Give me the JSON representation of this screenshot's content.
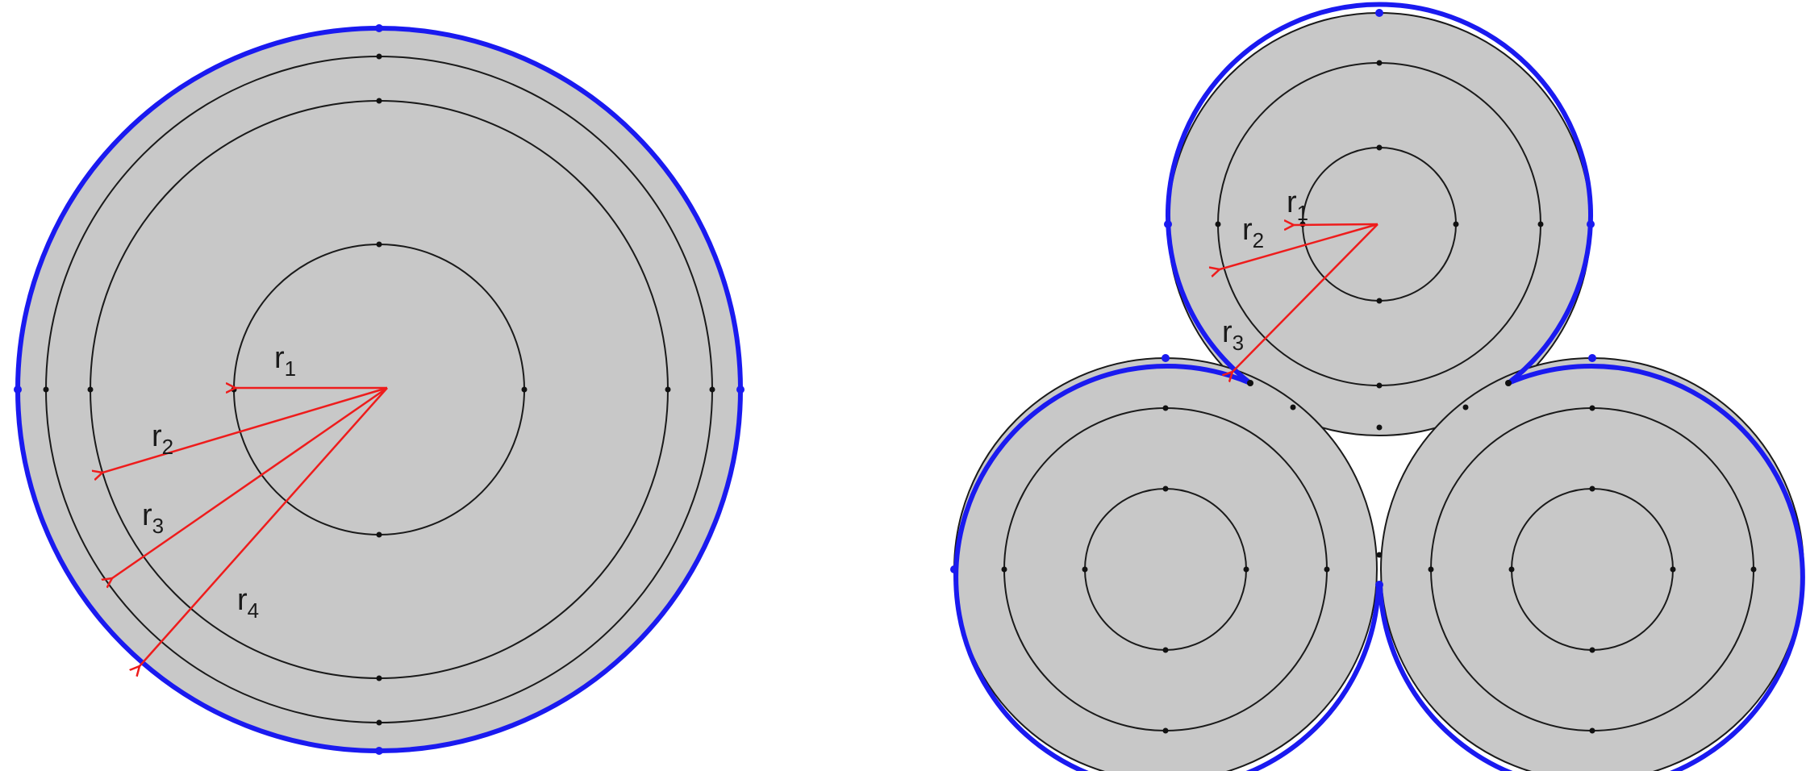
{
  "colors": {
    "fill": "#c8c8c8",
    "outline": "#1a1a1aff",
    "boundary": "#1a1af0",
    "arrow": "#ee1c1c",
    "node": "#111111"
  },
  "left_figure": {
    "labels": [
      {
        "base": "r",
        "sub": "1"
      },
      {
        "base": "r",
        "sub": "2"
      },
      {
        "base": "r",
        "sub": "3"
      },
      {
        "base": "r",
        "sub": "4"
      }
    ]
  },
  "right_figure": {
    "labels": [
      {
        "base": "r",
        "sub": "1"
      },
      {
        "base": "r",
        "sub": "2"
      },
      {
        "base": "r",
        "sub": "3"
      }
    ]
  }
}
